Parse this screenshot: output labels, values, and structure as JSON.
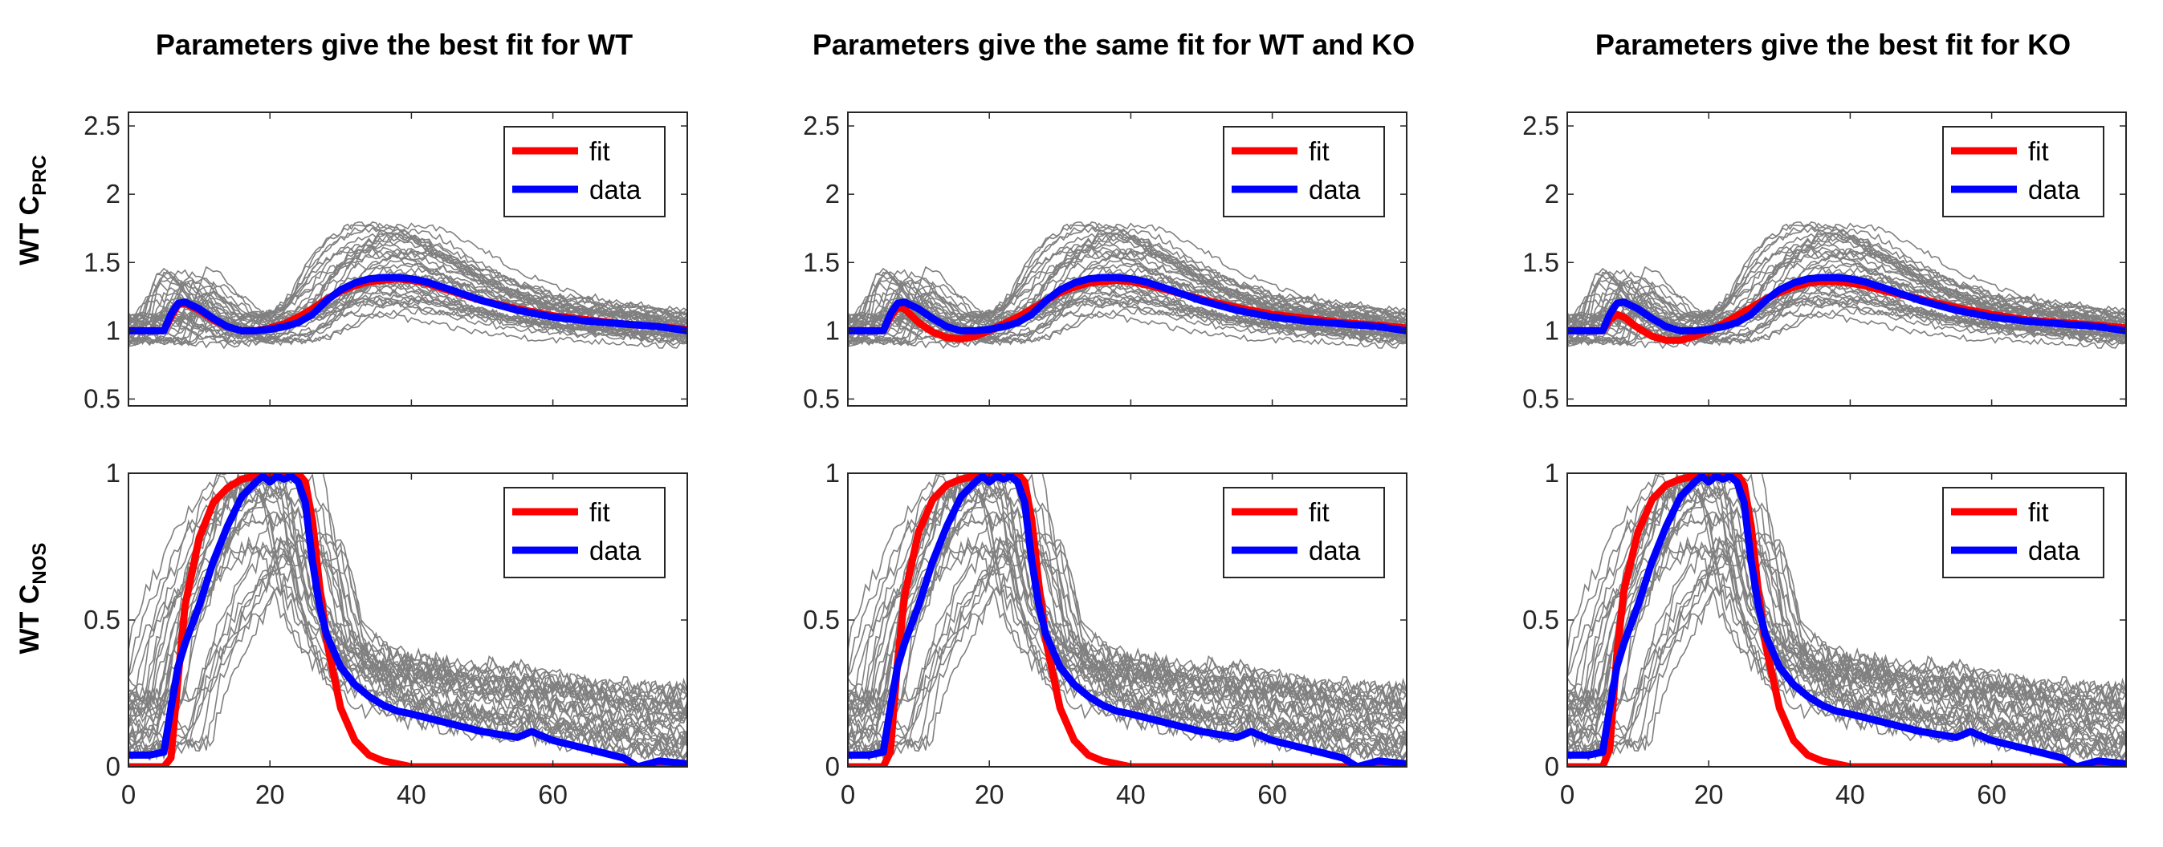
{
  "panels_titles": [
    "Parameters give the best fit for WT",
    "Parameters give the same fit for WT and KO",
    "Parameters give the best fit for KO"
  ],
  "row_labels": [
    {
      "main": "WT C",
      "sub": "PRC"
    },
    {
      "main": "WT C",
      "sub": "NOS"
    }
  ],
  "legend": {
    "fit": "fit",
    "data": "data"
  },
  "colors": {
    "fit": "#ff0000",
    "data": "#0000ff",
    "individual_traces": "#808080"
  },
  "chart_data": [
    {
      "type": "line",
      "title": "Parameters give the best fit for WT",
      "ylabel": "WT C_PRC",
      "xlim": [
        0,
        79
      ],
      "ylim": [
        0.45,
        2.6
      ],
      "xticks": [
        0,
        20,
        40,
        60
      ],
      "xtick_labels": [
        "",
        "",
        "",
        ""
      ],
      "yticks": [
        0.5,
        1,
        1.5,
        2,
        2.5
      ],
      "ytick_labels": [
        "0.5",
        "1",
        "1.5",
        "2",
        "2.5"
      ],
      "legend_position": "top-right",
      "series": [
        {
          "name": "fit",
          "x": [
            0,
            5,
            6,
            7,
            8,
            10,
            12,
            14,
            16,
            18,
            20,
            22,
            24,
            26,
            28,
            30,
            32,
            34,
            36,
            38,
            40,
            42,
            45,
            50,
            55,
            60,
            65,
            70,
            75,
            79
          ],
          "y": [
            1,
            1,
            1.1,
            1.19,
            1.2,
            1.15,
            1.08,
            1.03,
            1.0,
            1.0,
            1.02,
            1.05,
            1.1,
            1.16,
            1.23,
            1.29,
            1.33,
            1.36,
            1.37,
            1.38,
            1.37,
            1.35,
            1.3,
            1.22,
            1.16,
            1.11,
            1.08,
            1.05,
            1.03,
            1.01
          ]
        },
        {
          "name": "data",
          "x": [
            0,
            5,
            6,
            7,
            8,
            10,
            12,
            14,
            16,
            18,
            20,
            22,
            24,
            26,
            28,
            30,
            32,
            34,
            36,
            38,
            40,
            42,
            45,
            50,
            55,
            60,
            65,
            70,
            75,
            79
          ],
          "y": [
            1,
            1,
            1.12,
            1.2,
            1.21,
            1.16,
            1.09,
            1.03,
            1.0,
            1.0,
            1.01,
            1.03,
            1.06,
            1.12,
            1.22,
            1.3,
            1.35,
            1.38,
            1.39,
            1.39,
            1.38,
            1.36,
            1.31,
            1.22,
            1.15,
            1.1,
            1.07,
            1.05,
            1.03,
            1.0
          ]
        }
      ]
    },
    {
      "type": "line",
      "title": "Parameters give the same fit for WT and KO",
      "ylabel": "",
      "xlim": [
        0,
        79
      ],
      "ylim": [
        0.45,
        2.6
      ],
      "xticks": [
        0,
        20,
        40,
        60
      ],
      "xtick_labels": [
        "",
        "",
        "",
        ""
      ],
      "yticks": [
        0.5,
        1,
        1.5,
        2,
        2.5
      ],
      "ytick_labels": [
        "0.5",
        "1",
        "1.5",
        "2",
        "2.5"
      ],
      "legend_position": "top-right",
      "series": [
        {
          "name": "fit",
          "x": [
            0,
            5,
            6,
            7,
            8,
            10,
            12,
            14,
            16,
            18,
            20,
            22,
            24,
            26,
            28,
            30,
            32,
            34,
            36,
            38,
            40,
            42,
            45,
            50,
            55,
            60,
            65,
            70,
            75,
            79
          ],
          "y": [
            1,
            1,
            1.1,
            1.17,
            1.16,
            1.06,
            0.99,
            0.95,
            0.94,
            0.96,
            1.0,
            1.05,
            1.1,
            1.16,
            1.22,
            1.28,
            1.32,
            1.35,
            1.36,
            1.37,
            1.36,
            1.34,
            1.3,
            1.23,
            1.17,
            1.12,
            1.09,
            1.06,
            1.04,
            1.02
          ]
        },
        {
          "name": "data",
          "x": [
            0,
            5,
            6,
            7,
            8,
            10,
            12,
            14,
            16,
            18,
            20,
            22,
            24,
            26,
            28,
            30,
            32,
            34,
            36,
            38,
            40,
            42,
            45,
            50,
            55,
            60,
            65,
            70,
            75,
            79
          ],
          "y": [
            1,
            1,
            1.12,
            1.2,
            1.21,
            1.16,
            1.09,
            1.03,
            1.0,
            1.0,
            1.01,
            1.03,
            1.06,
            1.12,
            1.22,
            1.3,
            1.35,
            1.38,
            1.39,
            1.39,
            1.38,
            1.36,
            1.31,
            1.22,
            1.15,
            1.1,
            1.07,
            1.05,
            1.03,
            1.0
          ]
        }
      ]
    },
    {
      "type": "line",
      "title": "Parameters give the best fit for KO",
      "ylabel": "",
      "xlim": [
        0,
        79
      ],
      "ylim": [
        0.45,
        2.6
      ],
      "xticks": [
        0,
        20,
        40,
        60
      ],
      "xtick_labels": [
        "",
        "",
        "",
        ""
      ],
      "yticks": [
        0.5,
        1,
        1.5,
        2,
        2.5
      ],
      "ytick_labels": [
        "0.5",
        "1",
        "1.5",
        "2",
        "2.5"
      ],
      "legend_position": "top-right",
      "series": [
        {
          "name": "fit",
          "x": [
            0,
            5,
            6,
            7,
            8,
            10,
            12,
            14,
            16,
            18,
            20,
            22,
            24,
            26,
            28,
            30,
            32,
            34,
            36,
            38,
            40,
            42,
            45,
            50,
            55,
            60,
            65,
            70,
            75,
            79
          ],
          "y": [
            1,
            1,
            1.08,
            1.12,
            1.1,
            1.02,
            0.96,
            0.93,
            0.93,
            0.96,
            1.0,
            1.05,
            1.11,
            1.17,
            1.23,
            1.28,
            1.32,
            1.35,
            1.36,
            1.36,
            1.35,
            1.33,
            1.29,
            1.23,
            1.17,
            1.12,
            1.08,
            1.06,
            1.04,
            1.02
          ]
        },
        {
          "name": "data",
          "x": [
            0,
            5,
            6,
            7,
            8,
            10,
            12,
            14,
            16,
            18,
            20,
            22,
            24,
            26,
            28,
            30,
            32,
            34,
            36,
            38,
            40,
            42,
            45,
            50,
            55,
            60,
            65,
            70,
            75,
            79
          ],
          "y": [
            1,
            1,
            1.12,
            1.2,
            1.21,
            1.16,
            1.09,
            1.03,
            1.0,
            1.0,
            1.01,
            1.03,
            1.06,
            1.12,
            1.22,
            1.3,
            1.35,
            1.38,
            1.39,
            1.39,
            1.38,
            1.36,
            1.31,
            1.22,
            1.15,
            1.1,
            1.07,
            1.05,
            1.03,
            1.0
          ]
        }
      ]
    },
    {
      "type": "line",
      "title": "",
      "ylabel": "WT C_NOS",
      "xlim": [
        0,
        79
      ],
      "ylim": [
        0,
        1
      ],
      "xticks": [
        0,
        20,
        40,
        60
      ],
      "xtick_labels": [
        "0",
        "20",
        "40",
        "60"
      ],
      "yticks": [
        0,
        0.5,
        1
      ],
      "ytick_labels": [
        "0",
        "0.5",
        "1"
      ],
      "legend_position": "top-right",
      "series": [
        {
          "name": "fit",
          "x": [
            0,
            5,
            6,
            7,
            8,
            10,
            12,
            14,
            16,
            18,
            20,
            22,
            24,
            25,
            26,
            27,
            28,
            30,
            32,
            34,
            36,
            38,
            40,
            45,
            50,
            79
          ],
          "y": [
            0,
            0,
            0.03,
            0.3,
            0.55,
            0.78,
            0.9,
            0.95,
            0.98,
            0.99,
            1.0,
            1.0,
            1.0,
            0.97,
            0.84,
            0.62,
            0.43,
            0.2,
            0.09,
            0.04,
            0.02,
            0.01,
            0.0,
            0.0,
            0.0,
            0.0
          ]
        },
        {
          "name": "data",
          "x": [
            0,
            3,
            5,
            6,
            7,
            8,
            10,
            12,
            14,
            16,
            18,
            19,
            20,
            21,
            22,
            23,
            24,
            25,
            26,
            27,
            28,
            30,
            32,
            34,
            36,
            38,
            40,
            45,
            50,
            55,
            57,
            60,
            65,
            70,
            72,
            75,
            79
          ],
          "y": [
            0.04,
            0.04,
            0.05,
            0.2,
            0.34,
            0.42,
            0.55,
            0.7,
            0.82,
            0.92,
            0.97,
            0.99,
            0.97,
            0.99,
            0.98,
            0.99,
            0.97,
            0.9,
            0.7,
            0.55,
            0.45,
            0.34,
            0.28,
            0.24,
            0.21,
            0.19,
            0.18,
            0.15,
            0.12,
            0.1,
            0.12,
            0.09,
            0.06,
            0.03,
            0.0,
            0.02,
            0.01
          ]
        }
      ]
    },
    {
      "type": "line",
      "title": "",
      "ylabel": "",
      "xlim": [
        0,
        79
      ],
      "ylim": [
        0,
        1
      ],
      "xticks": [
        0,
        20,
        40,
        60
      ],
      "xtick_labels": [
        "0",
        "20",
        "40",
        "60"
      ],
      "yticks": [
        0,
        0.5,
        1
      ],
      "ytick_labels": [
        "0",
        "0.5",
        "1"
      ],
      "legend_position": "top-right",
      "series": [
        {
          "name": "fit",
          "x": [
            0,
            5,
            6,
            7,
            8,
            10,
            12,
            14,
            16,
            18,
            20,
            22,
            24,
            25,
            26,
            27,
            28,
            30,
            32,
            34,
            36,
            38,
            40,
            45,
            50,
            79
          ],
          "y": [
            0,
            0,
            0.05,
            0.35,
            0.58,
            0.8,
            0.91,
            0.96,
            0.98,
            0.99,
            1.0,
            1.0,
            1.0,
            0.97,
            0.84,
            0.62,
            0.43,
            0.2,
            0.09,
            0.04,
            0.02,
            0.01,
            0.0,
            0.0,
            0.0,
            0.0
          ]
        },
        {
          "name": "data",
          "x": [
            0,
            3,
            5,
            6,
            7,
            8,
            10,
            12,
            14,
            16,
            18,
            19,
            20,
            21,
            22,
            23,
            24,
            25,
            26,
            27,
            28,
            30,
            32,
            34,
            36,
            38,
            40,
            45,
            50,
            55,
            57,
            60,
            65,
            70,
            72,
            75,
            79
          ],
          "y": [
            0.04,
            0.04,
            0.05,
            0.2,
            0.34,
            0.42,
            0.55,
            0.7,
            0.82,
            0.92,
            0.97,
            0.99,
            0.97,
            0.99,
            0.98,
            0.99,
            0.97,
            0.9,
            0.7,
            0.55,
            0.45,
            0.34,
            0.28,
            0.24,
            0.21,
            0.19,
            0.18,
            0.15,
            0.12,
            0.1,
            0.12,
            0.09,
            0.06,
            0.03,
            0.0,
            0.02,
            0.01
          ]
        }
      ]
    },
    {
      "type": "line",
      "title": "",
      "ylabel": "",
      "xlim": [
        0,
        79
      ],
      "ylim": [
        0,
        1
      ],
      "xticks": [
        0,
        20,
        40,
        60
      ],
      "xtick_labels": [
        "0",
        "20",
        "40",
        "60"
      ],
      "yticks": [
        0,
        0.5,
        1
      ],
      "ytick_labels": [
        "0",
        "0.5",
        "1"
      ],
      "legend_position": "top-right",
      "series": [
        {
          "name": "fit",
          "x": [
            0,
            5,
            6,
            7,
            8,
            10,
            12,
            14,
            16,
            18,
            20,
            22,
            24,
            25,
            26,
            27,
            28,
            30,
            32,
            34,
            36,
            38,
            40,
            45,
            50,
            79
          ],
          "y": [
            0,
            0,
            0.06,
            0.38,
            0.6,
            0.8,
            0.91,
            0.96,
            0.98,
            0.99,
            1.0,
            1.0,
            1.0,
            0.96,
            0.82,
            0.6,
            0.42,
            0.2,
            0.09,
            0.04,
            0.02,
            0.01,
            0.0,
            0.0,
            0.0,
            0.0
          ]
        },
        {
          "name": "data",
          "x": [
            0,
            3,
            5,
            6,
            7,
            8,
            10,
            12,
            14,
            16,
            18,
            19,
            20,
            21,
            22,
            23,
            24,
            25,
            26,
            27,
            28,
            30,
            32,
            34,
            36,
            38,
            40,
            45,
            50,
            55,
            57,
            60,
            65,
            70,
            72,
            75,
            79
          ],
          "y": [
            0.04,
            0.04,
            0.05,
            0.2,
            0.34,
            0.42,
            0.55,
            0.7,
            0.82,
            0.92,
            0.97,
            0.99,
            0.97,
            0.99,
            0.98,
            0.99,
            0.97,
            0.9,
            0.7,
            0.55,
            0.45,
            0.34,
            0.28,
            0.24,
            0.21,
            0.19,
            0.18,
            0.15,
            0.12,
            0.1,
            0.12,
            0.09,
            0.06,
            0.03,
            0.0,
            0.02,
            0.01
          ]
        }
      ]
    }
  ]
}
